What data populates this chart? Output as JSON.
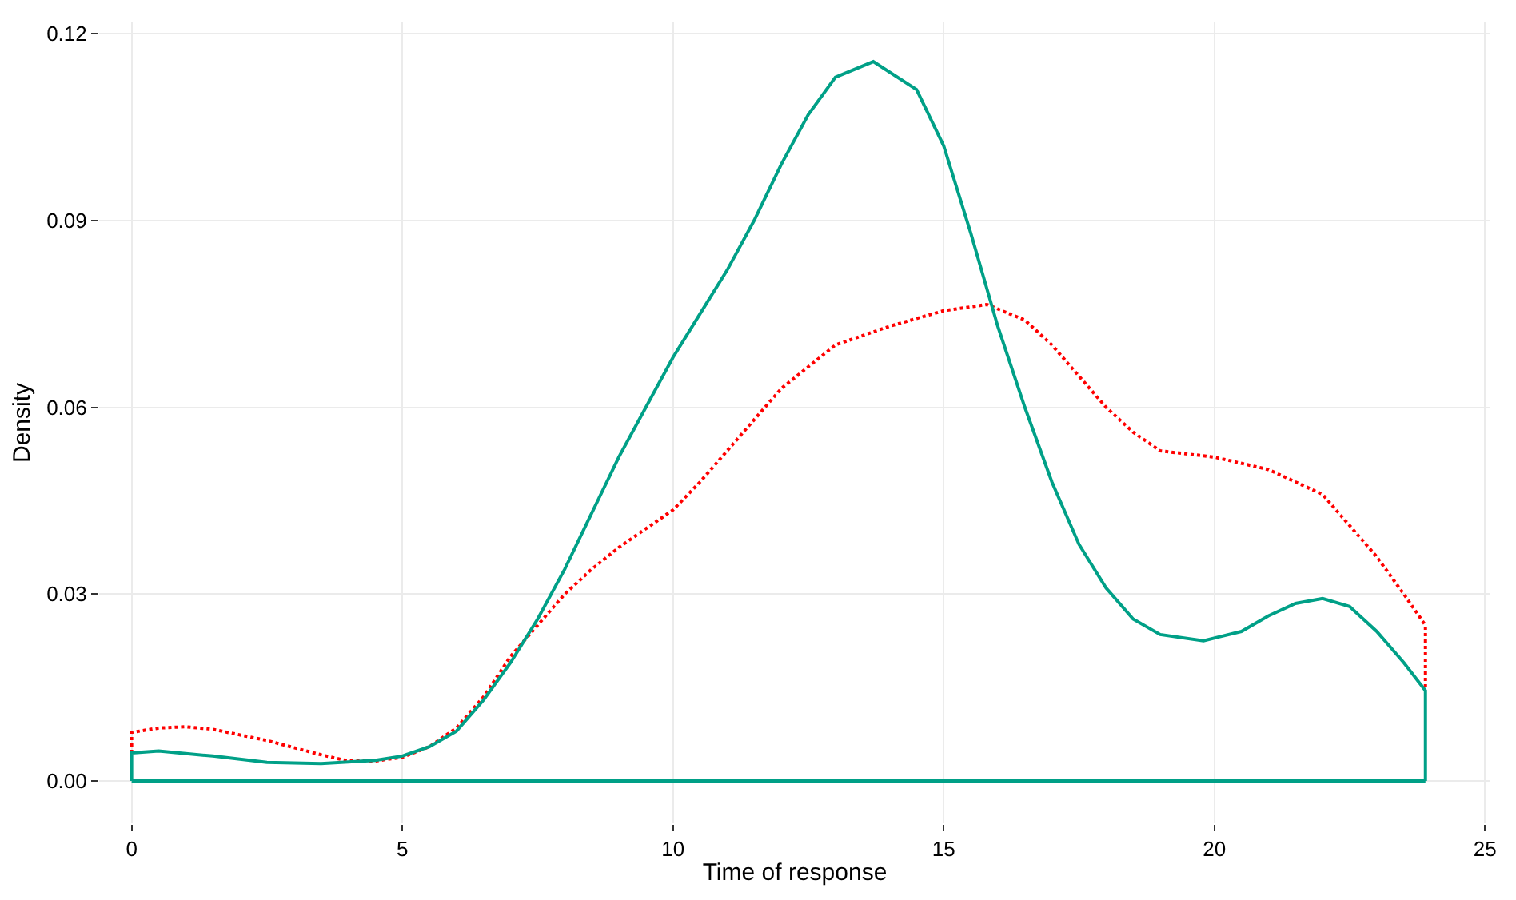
{
  "chart_data": {
    "type": "line",
    "xlabel": "Time of response",
    "ylabel": "Density",
    "xlim": [
      -0.6,
      25.1
    ],
    "ylim": [
      -0.0068,
      0.1218
    ],
    "xticks": [
      0,
      5,
      10,
      15,
      20,
      25
    ],
    "yticks": [
      {
        "value": 0,
        "label": "0.00"
      },
      {
        "value": 0.03,
        "label": "0.03"
      },
      {
        "value": 0.06,
        "label": "0.06"
      },
      {
        "value": 0.09,
        "label": "0.09"
      },
      {
        "value": 0.12,
        "label": "0.12"
      }
    ],
    "grid": true,
    "series": [
      {
        "color": "#ff0000",
        "line_style": "dotted",
        "x": [
          0,
          0,
          0.5,
          1,
          1.5,
          2.5,
          3.5,
          4,
          4.5,
          5,
          5.5,
          6,
          6.5,
          7,
          7.5,
          8,
          8.5,
          9,
          10,
          10.5,
          11,
          11.5,
          12,
          13,
          14,
          15,
          15.8,
          16.5,
          17,
          17.5,
          18,
          18.5,
          19,
          20,
          21,
          22,
          22.5,
          23,
          23.5,
          23.9,
          23.9
        ],
        "values": [
          0.0045,
          0.0078,
          0.0085,
          0.0087,
          0.0083,
          0.0065,
          0.0042,
          0.0032,
          0.0032,
          0.0038,
          0.0055,
          0.0085,
          0.0135,
          0.02,
          0.025,
          0.03,
          0.034,
          0.0375,
          0.0435,
          0.048,
          0.053,
          0.058,
          0.063,
          0.07,
          0.073,
          0.0755,
          0.0765,
          0.074,
          0.07,
          0.065,
          0.06,
          0.056,
          0.053,
          0.052,
          0.05,
          0.046,
          0.041,
          0.036,
          0.03,
          0.025,
          0.0145
        ]
      },
      {
        "color": "#00a087",
        "line_style": "solid",
        "x": [
          0,
          0,
          0.5,
          1.5,
          2.5,
          3.5,
          4.5,
          5,
          5.5,
          6,
          6.5,
          7,
          7.5,
          8,
          8.5,
          9,
          9.5,
          10,
          10.5,
          11,
          11.5,
          12,
          12.5,
          13,
          13.7,
          14.5,
          15,
          15.5,
          16,
          16.5,
          17,
          17.5,
          18,
          18.5,
          19,
          19.8,
          20.5,
          21,
          21.5,
          22,
          22.5,
          23,
          23.5,
          23.9,
          23.9
        ],
        "values": [
          0,
          0.0045,
          0.0048,
          0.004,
          0.003,
          0.0028,
          0.0033,
          0.004,
          0.0055,
          0.008,
          0.013,
          0.019,
          0.026,
          0.034,
          0.043,
          0.052,
          0.06,
          0.068,
          0.075,
          0.082,
          0.09,
          0.099,
          0.107,
          0.113,
          0.1155,
          0.111,
          0.102,
          0.088,
          0.073,
          0.06,
          0.048,
          0.038,
          0.031,
          0.026,
          0.0235,
          0.0225,
          0.024,
          0.0265,
          0.0285,
          0.0293,
          0.028,
          0.024,
          0.019,
          0.0145,
          0
        ]
      },
      {
        "color": "#00a087",
        "line_style": "solid",
        "x": [
          0,
          23.9
        ],
        "values": [
          0,
          0
        ]
      }
    ]
  }
}
